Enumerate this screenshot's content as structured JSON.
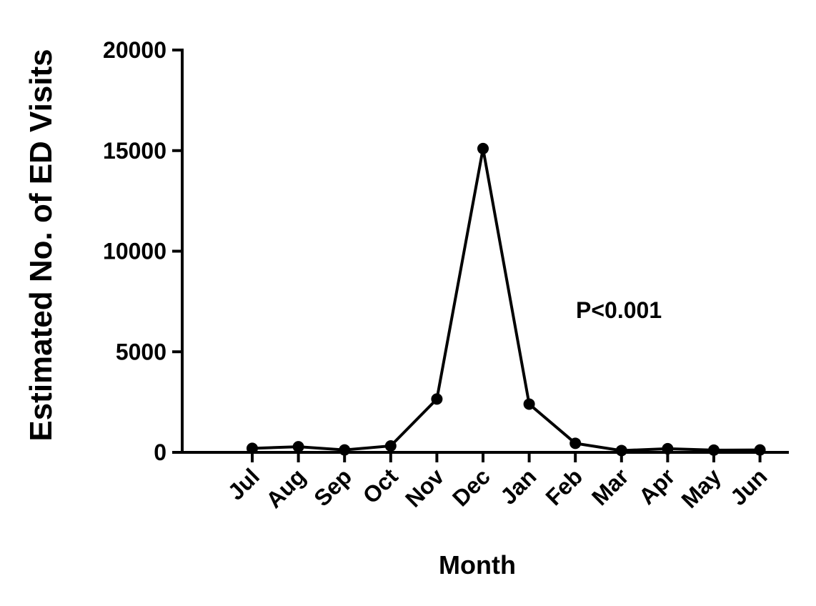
{
  "chart_data": {
    "type": "line",
    "title": "",
    "xlabel": "Month",
    "ylabel": "Estimated No. of ED Visits",
    "categories": [
      "Jul",
      "Aug",
      "Sep",
      "Oct",
      "Nov",
      "Dec",
      "Jan",
      "Feb",
      "Mar",
      "Apr",
      "May",
      "Jun"
    ],
    "series": [
      {
        "values": [
          200,
          280,
          120,
          320,
          2650,
          15100,
          2400,
          450,
          90,
          180,
          110,
          120
        ]
      }
    ],
    "ylim": [
      0,
      20000
    ],
    "yticks": [
      "0",
      "5000",
      "10000",
      "15000",
      "20000"
    ],
    "grid": false,
    "legend": "none",
    "annotation": "P<0.001",
    "line_color": "#000000",
    "marker_color": "#000000"
  }
}
